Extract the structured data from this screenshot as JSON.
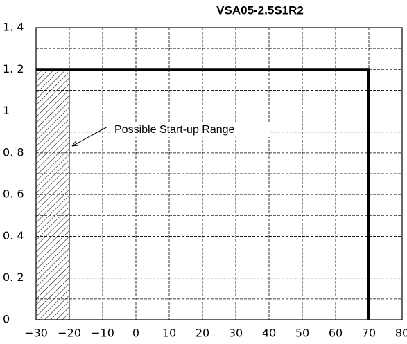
{
  "chart_data": {
    "type": "line",
    "title": "VSA05-2.5S1R2",
    "series": [
      {
        "x": [
          -30,
          70,
          70
        ],
        "values": [
          1.2,
          1.2,
          0
        ],
        "color": "#000000"
      }
    ],
    "xlim": [
      -30,
      80
    ],
    "xticks": [
      {
        "value": -30,
        "label": "−30"
      },
      {
        "value": -20,
        "label": "−20"
      },
      {
        "value": -10,
        "label": "−10"
      },
      0,
      10,
      20,
      30,
      40,
      50,
      60,
      70,
      80
    ],
    "ylim": [
      0,
      1.4
    ],
    "yticks": [
      0,
      {
        "value": 0.2,
        "label": "0. 2"
      },
      {
        "value": 0.4,
        "label": "0. 4"
      },
      {
        "value": 0.6,
        "label": "0. 6"
      },
      {
        "value": 0.8,
        "label": "0. 8"
      },
      1,
      {
        "value": 1.2,
        "label": "1. 2"
      },
      {
        "value": 1.4,
        "label": "1. 4"
      }
    ],
    "minor_yticks": [
      0.1,
      0.3,
      0.5,
      0.7,
      0.9,
      1.1,
      1.3
    ],
    "grid": true,
    "region": {
      "x": [
        -30,
        -20
      ],
      "y": [
        0,
        1.2
      ],
      "label": "Possible Start-up Range"
    }
  }
}
